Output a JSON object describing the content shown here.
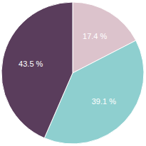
{
  "chart_data": {
    "type": "pie",
    "values": [
      17.4,
      39.1,
      43.5
    ],
    "value_labels": [
      "17.4 %",
      "39.1 %",
      "43.5 %"
    ],
    "colors": [
      "#dcc3cc",
      "#8ecfcf",
      "#5a3d5c"
    ],
    "data_labels": true
  }
}
